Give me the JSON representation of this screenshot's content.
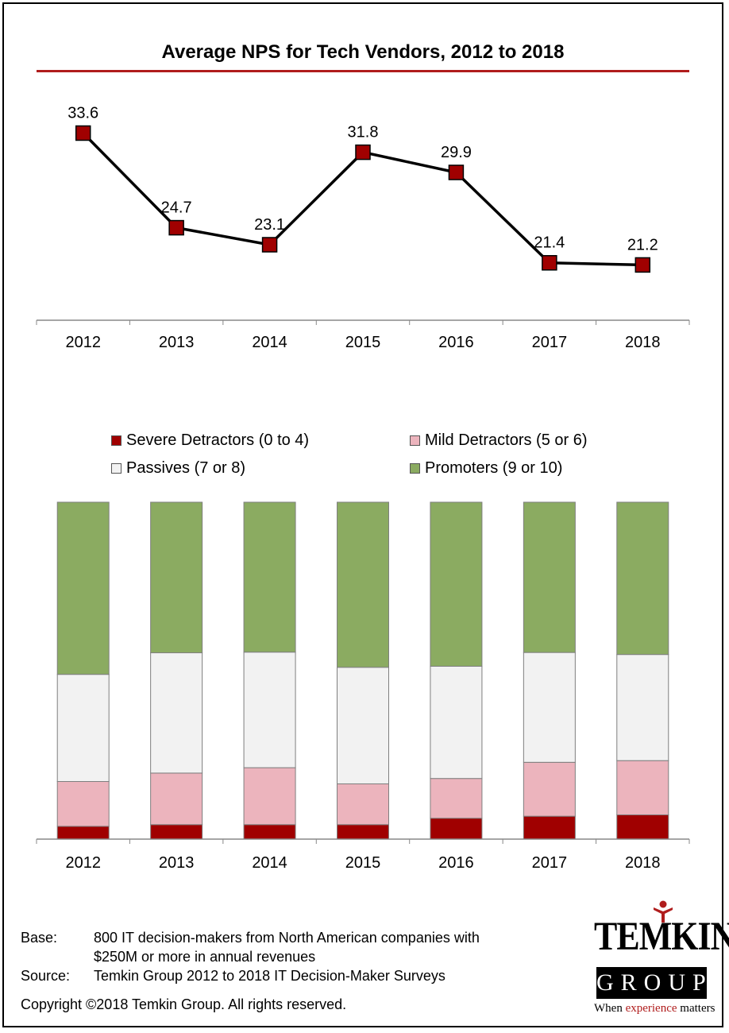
{
  "chart_data": [
    {
      "type": "line",
      "title": "Average NPS for Tech Vendors, 2012 to 2018",
      "categories": [
        "2012",
        "2013",
        "2014",
        "2015",
        "2016",
        "2017",
        "2018"
      ],
      "values": [
        33.6,
        24.7,
        23.1,
        31.8,
        29.9,
        21.4,
        21.2
      ],
      "data_labels": [
        "33.6",
        "24.7",
        "23.1",
        "31.8",
        "29.9",
        "21.4",
        "21.2"
      ],
      "ylim": [
        16,
        37
      ],
      "grid": false,
      "marker_color": "#a00000",
      "line_color": "#000000"
    },
    {
      "type": "bar",
      "stacked": true,
      "categories": [
        "2012",
        "2013",
        "2014",
        "2015",
        "2016",
        "2017",
        "2018"
      ],
      "legend_placement": "top",
      "ylim": [
        0,
        100
      ],
      "series": [
        {
          "name": "Severe Detractors (0 to 4)",
          "color": "#a00000",
          "values": [
            3.8,
            4.3,
            4.3,
            4.3,
            6.2,
            6.8,
            7.2
          ]
        },
        {
          "name": "Mild Detractors (5 or 6)",
          "color": "#ecb4bd",
          "values": [
            13.3,
            15.3,
            16.9,
            12.1,
            11.8,
            16.0,
            16.1
          ]
        },
        {
          "name": "Passives (7 or 8)",
          "color": "#f2f2f2",
          "values": [
            31.8,
            35.7,
            34.3,
            34.6,
            33.3,
            32.6,
            31.5
          ]
        },
        {
          "name": "Promoters (9 or 10)",
          "color": "#8bab61",
          "values": [
            51.1,
            44.7,
            44.5,
            49.0,
            48.7,
            44.6,
            45.2
          ]
        }
      ]
    }
  ],
  "footer": {
    "base_label": "Base:",
    "base_text_1": "800 IT decision-makers from North American companies with",
    "base_text_2": "$250M or more in annual revenues",
    "source_label": "Source:",
    "source_text": "Temkin Group 2012 to 2018 IT Decision-Maker Surveys",
    "copyright": "Copyright ©2018 Temkin Group. All rights reserved."
  },
  "logo": {
    "name_line": "TEMKIN",
    "group_line": "GROUP",
    "tagline_pre": "When ",
    "tagline_accent": "experience",
    "tagline_post": " matters"
  }
}
